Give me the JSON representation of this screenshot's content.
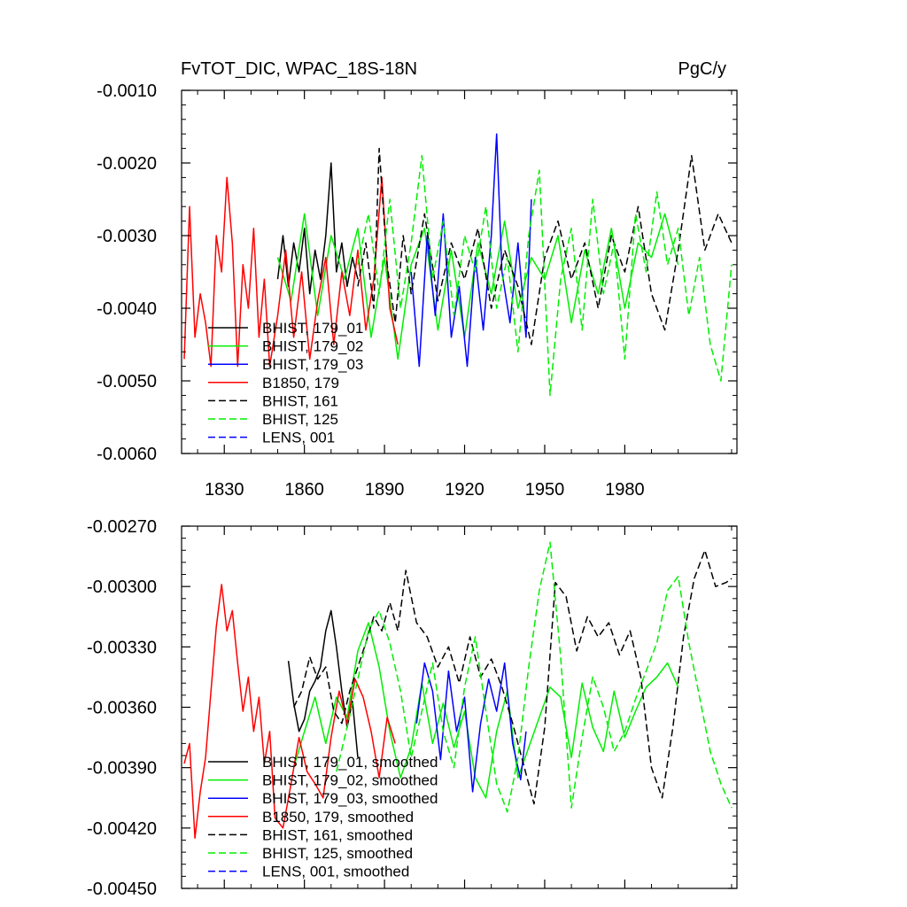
{
  "chart_data": [
    {
      "type": "line",
      "title": "FvTOT_DIC, WPAC_18S-18N",
      "units": "PgC/y",
      "xlim": [
        1814,
        2022
      ],
      "ylim": [
        -0.006,
        -0.001
      ],
      "xticks": [
        1830,
        1860,
        1890,
        1920,
        1950,
        1980
      ],
      "xtick_labels": [
        "1830",
        "1860",
        "1890",
        "1920",
        "1950",
        "1980"
      ],
      "yticks": [
        -0.006,
        -0.005,
        -0.004,
        -0.003,
        -0.002,
        -0.001
      ],
      "ytick_labels": [
        "-0.0060",
        "-0.0050",
        "-0.0040",
        "-0.0030",
        "-0.0020",
        "-0.0010"
      ],
      "series": [
        {
          "name": "BHIST, 179_01",
          "color": "#000000",
          "dash": "solid",
          "x": [
            1850,
            1852,
            1854,
            1856,
            1858,
            1860,
            1862,
            1864,
            1866,
            1868,
            1870,
            1872,
            1874,
            1876,
            1878,
            1880
          ],
          "y": [
            -0.0036,
            -0.003,
            -0.0037,
            -0.0031,
            -0.0035,
            -0.0029,
            -0.0038,
            -0.0032,
            -0.0036,
            -0.003,
            -0.002,
            -0.0035,
            -0.0031,
            -0.0037,
            -0.0033,
            -0.0036
          ]
        },
        {
          "name": "BHIST, 179_02",
          "color": "#00ee00",
          "dash": "solid",
          "x": [
            1850,
            1855,
            1860,
            1865,
            1870,
            1875,
            1880,
            1885,
            1890,
            1895,
            1900,
            1905,
            1910,
            1915,
            1920,
            1925,
            1930,
            1935,
            1940,
            1945,
            1950,
            1955,
            1960,
            1965,
            1970,
            1975,
            1980,
            1985,
            1990,
            1995,
            2000
          ],
          "y": [
            -0.0033,
            -0.0039,
            -0.0027,
            -0.0041,
            -0.003,
            -0.0036,
            -0.0029,
            -0.0044,
            -0.0033,
            -0.0047,
            -0.0034,
            -0.0029,
            -0.0043,
            -0.0032,
            -0.0044,
            -0.0031,
            -0.0038,
            -0.0028,
            -0.004,
            -0.0033,
            -0.0036,
            -0.003,
            -0.0042,
            -0.0032,
            -0.0038,
            -0.0029,
            -0.004,
            -0.0031,
            -0.0033,
            -0.0027,
            -0.0034
          ]
        },
        {
          "name": "BHIST, 179_03",
          "color": "#0000ff",
          "dash": "solid",
          "x": [
            1900,
            1903,
            1906,
            1909,
            1912,
            1915,
            1918,
            1921,
            1924,
            1927,
            1930,
            1932,
            1934,
            1937,
            1940,
            1943,
            1945
          ],
          "y": [
            -0.0035,
            -0.0048,
            -0.003,
            -0.0041,
            -0.0027,
            -0.0044,
            -0.0037,
            -0.0048,
            -0.0033,
            -0.0043,
            -0.003,
            -0.0016,
            -0.0035,
            -0.0042,
            -0.0031,
            -0.0044,
            -0.0025
          ]
        },
        {
          "name": "B1850, 179",
          "color": "#ff0000",
          "dash": "solid",
          "x": [
            1815,
            1817,
            1819,
            1821,
            1823,
            1825,
            1827,
            1829,
            1831,
            1833,
            1835,
            1837,
            1839,
            1841,
            1843,
            1845,
            1847,
            1850,
            1853,
            1856,
            1859,
            1862,
            1865,
            1868,
            1871,
            1874,
            1877,
            1880,
            1883,
            1886,
            1889,
            1892,
            1895
          ],
          "y": [
            -0.0047,
            -0.0026,
            -0.0044,
            -0.0038,
            -0.0042,
            -0.0048,
            -0.003,
            -0.0035,
            -0.0022,
            -0.0031,
            -0.0048,
            -0.0034,
            -0.004,
            -0.0029,
            -0.0044,
            -0.0036,
            -0.0048,
            -0.0041,
            -0.0032,
            -0.0044,
            -0.0035,
            -0.0047,
            -0.0039,
            -0.0033,
            -0.0045,
            -0.0035,
            -0.0041,
            -0.0032,
            -0.0043,
            -0.0036,
            -0.0022,
            -0.004,
            -0.0045
          ]
        },
        {
          "name": "BHIST, 161",
          "color": "#000000",
          "dash": "dashed",
          "x": [
            1880,
            1883,
            1886,
            1888,
            1891,
            1894,
            1897,
            1900,
            1905,
            1910,
            1915,
            1920,
            1925,
            1930,
            1935,
            1940,
            1945,
            1950,
            1955,
            1960,
            1965,
            1970,
            1975,
            1980,
            1985,
            1990,
            1995,
            2000,
            2005,
            2010,
            2015,
            2020
          ],
          "y": [
            -0.0037,
            -0.0031,
            -0.004,
            -0.0018,
            -0.0034,
            -0.0042,
            -0.003,
            -0.0038,
            -0.0027,
            -0.0039,
            -0.0031,
            -0.0036,
            -0.0029,
            -0.004,
            -0.0032,
            -0.0037,
            -0.0045,
            -0.0033,
            -0.0028,
            -0.0036,
            -0.0031,
            -0.004,
            -0.003,
            -0.0035,
            -0.0026,
            -0.0038,
            -0.0043,
            -0.0032,
            -0.0019,
            -0.0032,
            -0.0027,
            -0.0031
          ]
        },
        {
          "name": "BHIST, 125",
          "color": "#00ee00",
          "dash": "dashed",
          "x": [
            1880,
            1884,
            1888,
            1892,
            1896,
            1900,
            1904,
            1908,
            1912,
            1916,
            1920,
            1924,
            1928,
            1932,
            1936,
            1940,
            1944,
            1948,
            1952,
            1956,
            1960,
            1964,
            1968,
            1972,
            1976,
            1980,
            1984,
            1988,
            1992,
            1996,
            2000,
            2004,
            2008,
            2012,
            2016,
            2020
          ],
          "y": [
            -0.0034,
            -0.0027,
            -0.0038,
            -0.0025,
            -0.004,
            -0.0031,
            -0.0019,
            -0.0036,
            -0.0028,
            -0.0041,
            -0.003,
            -0.0035,
            -0.0026,
            -0.004,
            -0.0033,
            -0.0046,
            -0.003,
            -0.0021,
            -0.0052,
            -0.0036,
            -0.0029,
            -0.0043,
            -0.0025,
            -0.0038,
            -0.0031,
            -0.0047,
            -0.0027,
            -0.0035,
            -0.0024,
            -0.0034,
            -0.0029,
            -0.0041,
            -0.0033,
            -0.0045,
            -0.005,
            -0.0034
          ]
        },
        {
          "name": "LENS, 001",
          "color": "#0000ff",
          "dash": "dashed",
          "x": [],
          "y": []
        }
      ]
    },
    {
      "type": "line",
      "title": "",
      "xlim": [
        1814,
        2022
      ],
      "ylim": [
        -0.0045,
        -0.0027
      ],
      "yticks": [
        -0.0045,
        -0.0042,
        -0.0039,
        -0.0036,
        -0.0033,
        -0.003,
        -0.0027
      ],
      "ytick_labels": [
        "-0.00450",
        "-0.00420",
        "-0.00390",
        "-0.00360",
        "-0.00330",
        "-0.00300",
        "-0.00270"
      ],
      "series": [
        {
          "name": "BHIST, 179_01, smoothed",
          "color": "#000000",
          "dash": "solid",
          "x": [
            1854,
            1856,
            1858,
            1860,
            1862,
            1864,
            1866,
            1868,
            1870,
            1872,
            1874,
            1876,
            1878,
            1880
          ],
          "y": [
            -0.00337,
            -0.00358,
            -0.00372,
            -0.00366,
            -0.00352,
            -0.00347,
            -0.0034,
            -0.00322,
            -0.00312,
            -0.0033,
            -0.00352,
            -0.0037,
            -0.00357,
            -0.00385
          ]
        },
        {
          "name": "BHIST, 179_02, smoothed",
          "color": "#00ee00",
          "dash": "solid",
          "x": [
            1856,
            1860,
            1864,
            1868,
            1872,
            1876,
            1880,
            1884,
            1888,
            1892,
            1896,
            1900,
            1904,
            1908,
            1912,
            1916,
            1920,
            1924,
            1928,
            1932,
            1936,
            1940,
            1944,
            1948,
            1952,
            1956,
            1960,
            1964,
            1968,
            1972,
            1976,
            1980,
            1984,
            1988,
            1992,
            1996,
            2000
          ],
          "y": [
            -0.0039,
            -0.00372,
            -0.00355,
            -0.00378,
            -0.00355,
            -0.00365,
            -0.00332,
            -0.00318,
            -0.0034,
            -0.00372,
            -0.00395,
            -0.0038,
            -0.00348,
            -0.00378,
            -0.00358,
            -0.0038,
            -0.00362,
            -0.00395,
            -0.00405,
            -0.00372,
            -0.00352,
            -0.00395,
            -0.0038,
            -0.00365,
            -0.0035,
            -0.00355,
            -0.00385,
            -0.00348,
            -0.0037,
            -0.00382,
            -0.00352,
            -0.00375,
            -0.00362,
            -0.0035,
            -0.00345,
            -0.00338,
            -0.0035
          ]
        },
        {
          "name": "BHIST, 179_03, smoothed",
          "color": "#0000ff",
          "dash": "solid",
          "x": [
            1902,
            1905,
            1908,
            1911,
            1914,
            1917,
            1920,
            1923,
            1926,
            1929,
            1932,
            1935,
            1938,
            1941,
            1943
          ],
          "y": [
            -0.00368,
            -0.00338,
            -0.00352,
            -0.00386,
            -0.00342,
            -0.00372,
            -0.00355,
            -0.00402,
            -0.00368,
            -0.00346,
            -0.00362,
            -0.00338,
            -0.00378,
            -0.00396,
            -0.00372
          ]
        },
        {
          "name": "B1850, 179, smoothed",
          "color": "#ff0000",
          "dash": "solid",
          "x": [
            1815,
            1817,
            1819,
            1821,
            1823,
            1825,
            1827,
            1829,
            1831,
            1833,
            1835,
            1837,
            1839,
            1841,
            1843,
            1845,
            1847,
            1849,
            1852,
            1855,
            1858,
            1861,
            1864,
            1867,
            1870,
            1873,
            1876,
            1879,
            1882,
            1885,
            1888,
            1891,
            1894
          ],
          "y": [
            -0.00388,
            -0.00378,
            -0.00425,
            -0.00402,
            -0.00385,
            -0.00352,
            -0.0032,
            -0.00299,
            -0.00322,
            -0.00312,
            -0.00338,
            -0.00362,
            -0.00345,
            -0.00372,
            -0.00355,
            -0.00388,
            -0.00372,
            -0.00415,
            -0.0042,
            -0.00398,
            -0.00375,
            -0.00392,
            -0.00398,
            -0.00405,
            -0.00375,
            -0.00352,
            -0.00368,
            -0.00346,
            -0.00355,
            -0.00372,
            -0.00395,
            -0.00365,
            -0.00378
          ]
        },
        {
          "name": "BHIST, 161, smoothed",
          "color": "#000000",
          "dash": "dashed",
          "x": [
            1856,
            1859,
            1862,
            1865,
            1868,
            1871,
            1874,
            1877,
            1880,
            1883,
            1886,
            1889,
            1892,
            1895,
            1898,
            1902,
            1906,
            1910,
            1914,
            1918,
            1922,
            1926,
            1930,
            1934,
            1938,
            1942,
            1946,
            1950,
            1954,
            1958,
            1962,
            1966,
            1970,
            1974,
            1978,
            1982,
            1986,
            1990,
            1994,
            1998,
            2002,
            2006,
            2010,
            2014,
            2018,
            2020
          ],
          "y": [
            -0.0036,
            -0.00352,
            -0.00335,
            -0.00346,
            -0.0034,
            -0.00362,
            -0.00368,
            -0.00352,
            -0.0034,
            -0.00328,
            -0.00315,
            -0.00322,
            -0.00308,
            -0.00322,
            -0.00292,
            -0.00318,
            -0.00325,
            -0.0034,
            -0.0033,
            -0.00348,
            -0.00325,
            -0.00345,
            -0.00336,
            -0.0035,
            -0.00368,
            -0.00388,
            -0.00408,
            -0.0037,
            -0.00298,
            -0.00305,
            -0.00332,
            -0.00315,
            -0.00325,
            -0.00318,
            -0.00334,
            -0.00322,
            -0.00345,
            -0.0039,
            -0.00405,
            -0.0037,
            -0.00325,
            -0.00296,
            -0.00282,
            -0.003,
            -0.00298,
            -0.00296
          ]
        },
        {
          "name": "BHIST, 125, smoothed",
          "color": "#00ee00",
          "dash": "dashed",
          "x": [
            1872,
            1876,
            1880,
            1884,
            1888,
            1892,
            1896,
            1900,
            1904,
            1908,
            1912,
            1916,
            1920,
            1924,
            1928,
            1932,
            1936,
            1940,
            1944,
            1948,
            1952,
            1956,
            1960,
            1964,
            1968,
            1972,
            1976,
            1980,
            1984,
            1988,
            1992,
            1996,
            2000,
            2004,
            2008,
            2012,
            2016,
            2020
          ],
          "y": [
            -0.00392,
            -0.0037,
            -0.00346,
            -0.00322,
            -0.00312,
            -0.00328,
            -0.00352,
            -0.00385,
            -0.00362,
            -0.00338,
            -0.00372,
            -0.0039,
            -0.0035,
            -0.00325,
            -0.00362,
            -0.00398,
            -0.00412,
            -0.00385,
            -0.0034,
            -0.00302,
            -0.00278,
            -0.00335,
            -0.0041,
            -0.00375,
            -0.00345,
            -0.0036,
            -0.00382,
            -0.00372,
            -0.00356,
            -0.00342,
            -0.00328,
            -0.00302,
            -0.00295,
            -0.00328,
            -0.00355,
            -0.00382,
            -0.00398,
            -0.0041
          ]
        },
        {
          "name": "LENS, 001, smoothed",
          "color": "#0000ff",
          "dash": "dashed",
          "x": [],
          "y": []
        }
      ]
    }
  ]
}
